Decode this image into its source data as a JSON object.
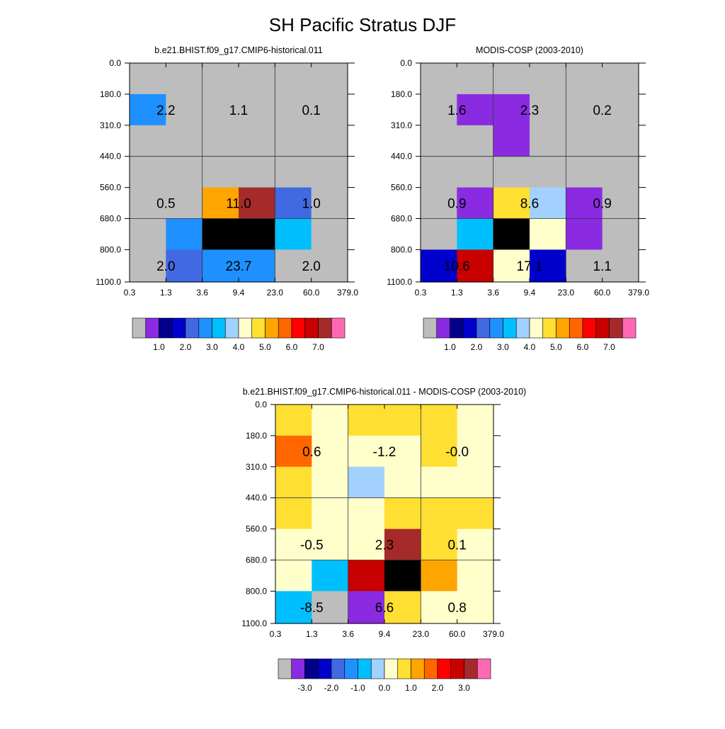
{
  "figure": {
    "title": "SH Pacific Stratus DJF"
  },
  "chart_data": [
    {
      "type": "heatmap",
      "title": "b.e21.BHIST.f09_g17.CMIP6-historical.011",
      "x_ticks": [
        "0.3",
        "1.3",
        "3.6",
        "9.4",
        "23.0",
        "60.0",
        "379.0"
      ],
      "y_ticks": [
        "0.0",
        "180.0",
        "310.0",
        "440.0",
        "560.0",
        "680.0",
        "800.0",
        "1100.0"
      ],
      "cells": [
        [
          0,
          0,
          0,
          0,
          0,
          0
        ],
        [
          5,
          0,
          0,
          0,
          0,
          0
        ],
        [
          0,
          0,
          0,
          0,
          0,
          0
        ],
        [
          0,
          0,
          0,
          0,
          0,
          0
        ],
        [
          0,
          0,
          10,
          14,
          4,
          0
        ],
        [
          0,
          5,
          16,
          16,
          6,
          0
        ],
        [
          0,
          4,
          5,
          5,
          0,
          0
        ]
      ],
      "cell_values_text": [
        {
          "row": 1,
          "col": 0.5,
          "text": "2.2"
        },
        {
          "row": 1,
          "col": 2.5,
          "text": "1.1"
        },
        {
          "row": 1,
          "col": 4.5,
          "text": "0.1"
        },
        {
          "row": 4,
          "col": 0.5,
          "text": "0.5"
        },
        {
          "row": 4,
          "col": 2.5,
          "text": "11.0"
        },
        {
          "row": 4,
          "col": 4.5,
          "text": "1.0"
        },
        {
          "row": 6,
          "col": 0.5,
          "text": "2.0"
        },
        {
          "row": 6,
          "col": 2.5,
          "text": "23.7"
        },
        {
          "row": 6,
          "col": 4.5,
          "text": "2.0"
        }
      ],
      "colorbar_labels": [
        "1.0",
        "2.0",
        "3.0",
        "4.0",
        "5.0",
        "6.0",
        "7.0"
      ]
    },
    {
      "type": "heatmap",
      "title": "MODIS-COSP (2003-2010)",
      "x_ticks": [
        "0.3",
        "1.3",
        "3.6",
        "9.4",
        "23.0",
        "60.0",
        "379.0"
      ],
      "y_ticks": [
        "0.0",
        "180.0",
        "310.0",
        "440.0",
        "560.0",
        "680.0",
        "800.0",
        "1100.0"
      ],
      "cells": [
        [
          0,
          0,
          0,
          0,
          0,
          0
        ],
        [
          0,
          1,
          1,
          0,
          0,
          0
        ],
        [
          0,
          0,
          1,
          0,
          0,
          0
        ],
        [
          0,
          0,
          0,
          0,
          0,
          0
        ],
        [
          0,
          1,
          9,
          7,
          1,
          0
        ],
        [
          0,
          6,
          16,
          8,
          1,
          0
        ],
        [
          3,
          13,
          8,
          3,
          0,
          0
        ]
      ],
      "cell_values_text": [
        {
          "row": 1,
          "col": 0.5,
          "text": "1.6"
        },
        {
          "row": 1,
          "col": 2.5,
          "text": "2.3"
        },
        {
          "row": 1,
          "col": 4.5,
          "text": "0.2"
        },
        {
          "row": 4,
          "col": 0.5,
          "text": "0.9"
        },
        {
          "row": 4,
          "col": 2.5,
          "text": "8.6"
        },
        {
          "row": 4,
          "col": 4.5,
          "text": "0.9"
        },
        {
          "row": 6,
          "col": 0.5,
          "text": "10.6"
        },
        {
          "row": 6,
          "col": 2.5,
          "text": "17.1"
        },
        {
          "row": 6,
          "col": 4.5,
          "text": "1.1"
        }
      ],
      "colorbar_labels": [
        "1.0",
        "2.0",
        "3.0",
        "4.0",
        "5.0",
        "6.0",
        "7.0"
      ]
    },
    {
      "type": "heatmap",
      "title": "b.e21.BHIST.f09_g17.CMIP6-historical.011 - MODIS-COSP (2003-2010)",
      "x_ticks": [
        "0.3",
        "1.3",
        "3.6",
        "9.4",
        "23.0",
        "60.0",
        "379.0"
      ],
      "y_ticks": [
        "0.0",
        "180.0",
        "310.0",
        "440.0",
        "560.0",
        "680.0",
        "800.0",
        "1100.0"
      ],
      "cells": [
        [
          9,
          8,
          9,
          9,
          9,
          8
        ],
        [
          11,
          8,
          8,
          8,
          9,
          8
        ],
        [
          9,
          8,
          7,
          8,
          8,
          8
        ],
        [
          9,
          8,
          8,
          9,
          9,
          9
        ],
        [
          8,
          8,
          8,
          14,
          9,
          8
        ],
        [
          8,
          6,
          13,
          16,
          10,
          8
        ],
        [
          6,
          0,
          1,
          9,
          8,
          8
        ]
      ],
      "cell_values_text": [
        {
          "row": 1,
          "col": 0.5,
          "text": "0.6"
        },
        {
          "row": 1,
          "col": 2.5,
          "text": "-1.2"
        },
        {
          "row": 1,
          "col": 4.5,
          "text": "-0.0"
        },
        {
          "row": 4,
          "col": 0.5,
          "text": "-0.5"
        },
        {
          "row": 4,
          "col": 2.5,
          "text": "2.3"
        },
        {
          "row": 4,
          "col": 4.5,
          "text": "0.1"
        },
        {
          "row": 6,
          "col": 0.5,
          "text": "-8.5"
        },
        {
          "row": 6,
          "col": 2.5,
          "text": "6.6"
        },
        {
          "row": 6,
          "col": 4.5,
          "text": "0.8"
        }
      ],
      "colorbar_labels": [
        "-3.0",
        "-2.0",
        "-1.0",
        "0.0",
        "1.0",
        "2.0",
        "3.0"
      ]
    }
  ],
  "palette": [
    "#bdbdbd",
    "#8a2be2",
    "#00008b",
    "#0000cd",
    "#4169e1",
    "#1e90ff",
    "#00bfff",
    "#a3d1ff",
    "#ffffcc",
    "#ffdf32",
    "#ffa500",
    "#ff6600",
    "#ff0000",
    "#c80000",
    "#a52a2a",
    "#ff69b4"
  ]
}
